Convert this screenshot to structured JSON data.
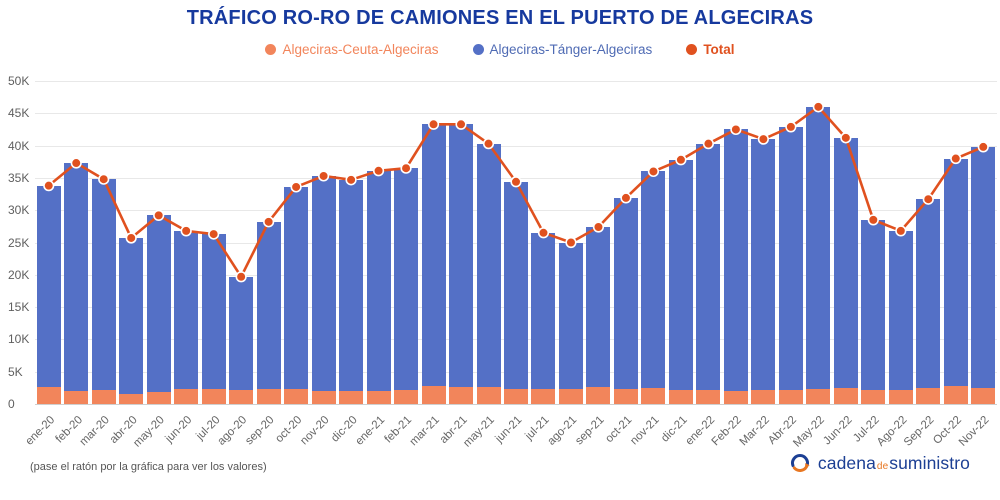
{
  "title": "TRÁFICO RO-RO DE CAMIONES EN EL PUERTO DE ALGECIRAS",
  "legend": [
    {
      "label": "Algeciras-Ceuta-Algeciras",
      "color": "#f2855b",
      "text_color": "#f2855b"
    },
    {
      "label": "Algeciras-Tánger-Algeciras",
      "color": "#5470c6",
      "text_color": "#4f6bb4"
    },
    {
      "label": "Total",
      "color": "#e0511f",
      "text_color": "#e0511f"
    }
  ],
  "footer": {
    "note": "(pase el ratón por la gráfica para ver los valores)",
    "brand": {
      "icon": "swirl-circle-logo-icon",
      "name_part1": "cadena",
      "name_part2": "de",
      "name_part3": "suministro",
      "blue": "#1c3f94",
      "orange": "#e87722"
    }
  },
  "colors": {
    "title": "#16399e",
    "grid": "#e8e8e8",
    "axis_text": "#666666",
    "bar_ceuta": "#f2855b",
    "bar_tanger": "#5470c6",
    "total_line": "#e0511f"
  },
  "chart_data": {
    "type": "bar",
    "subtype": "stacked-bars-with-total-line",
    "title": "TRÁFICO RO-RO DE CAMIONES EN EL PUERTO DE ALGECIRAS",
    "xlabel": "",
    "ylabel": "",
    "ylim": [
      0,
      50000
    ],
    "ytick_step": 5000,
    "ytick_labels": [
      "0",
      "5K",
      "10K",
      "15K",
      "20K",
      "25K",
      "30K",
      "35K",
      "40K",
      "45K",
      "50K"
    ],
    "grid": true,
    "legend_position": "top",
    "categories": [
      "ene-20",
      "feb-20",
      "mar-20",
      "abr-20",
      "may-20",
      "jun-20",
      "jul-20",
      "ago-20",
      "sep-20",
      "oct-20",
      "nov-20",
      "dic-20",
      "ene-21",
      "feb-21",
      "mar-21",
      "abr-21",
      "may-21",
      "jun-21",
      "jul-21",
      "ago-21",
      "sep-21",
      "oct-21",
      "nov-21",
      "dic-21",
      "ene-22",
      "Feb-22",
      "Mar-22",
      "Abr-22",
      "May-22",
      "Jun-22",
      "Jul-22",
      "Ago-22",
      "Sep-22",
      "Oct-22",
      "Nov-22"
    ],
    "series": [
      {
        "name": "Algeciras-Ceuta-Algeciras",
        "type": "bar",
        "stack": true,
        "color": "#f2855b",
        "values": [
          2600,
          2000,
          2200,
          1500,
          1800,
          2300,
          2300,
          2100,
          2300,
          2300,
          2000,
          2000,
          2000,
          2100,
          2800,
          2700,
          2600,
          2300,
          2300,
          2300,
          2700,
          2300,
          2500,
          2200,
          2200,
          2000,
          2100,
          2200,
          2300,
          2500,
          2200,
          2200,
          2400,
          2800,
          2500
        ]
      },
      {
        "name": "Algeciras-Tánger-Algeciras",
        "type": "bar",
        "stack": true,
        "color": "#5470c6",
        "values": [
          31200,
          35300,
          32600,
          24200,
          27400,
          24500,
          24000,
          17600,
          25900,
          31300,
          33300,
          32700,
          34100,
          34400,
          40500,
          40600,
          37700,
          32100,
          24200,
          22700,
          24700,
          29600,
          33500,
          35600,
          38100,
          40500,
          38900,
          40700,
          43700,
          38700,
          26300,
          24600,
          29300,
          35200,
          37300
        ]
      },
      {
        "name": "Total",
        "type": "line",
        "color": "#e0511f",
        "values": [
          33800,
          37300,
          34800,
          25700,
          29200,
          26800,
          26300,
          19700,
          28200,
          33600,
          35300,
          34700,
          36100,
          36500,
          43300,
          43300,
          40300,
          34400,
          26500,
          25000,
          27400,
          31900,
          36000,
          37800,
          40300,
          42500,
          41000,
          42900,
          46000,
          41200,
          28500,
          26800,
          31700,
          38000,
          39800
        ]
      }
    ]
  }
}
